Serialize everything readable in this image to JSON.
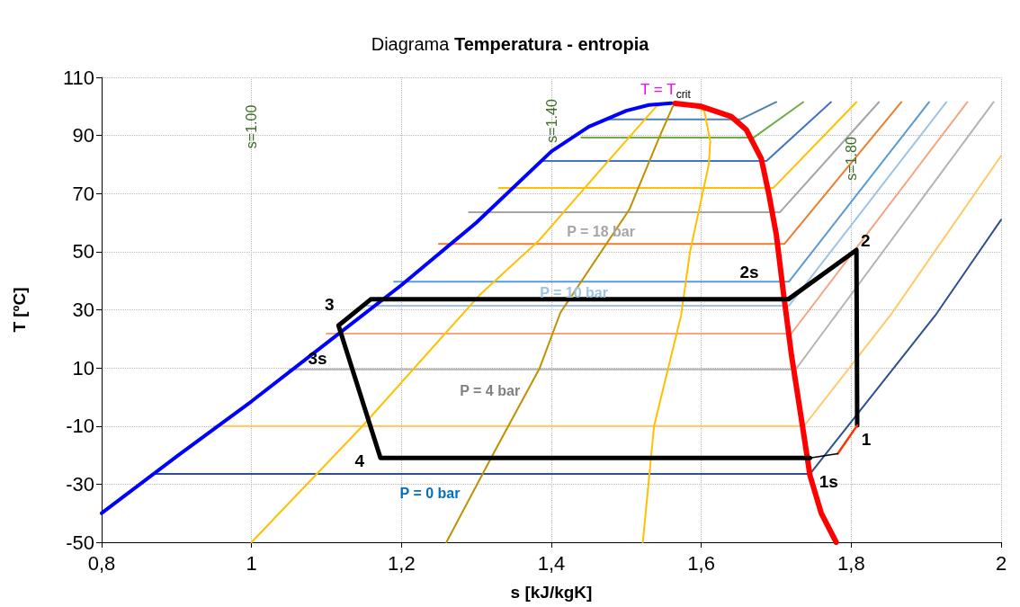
{
  "chart_data": {
    "type": "line",
    "title": "Diagrama Temperatura - entropia",
    "xlabel": "s [kJ/kgK]",
    "ylabel": "T [ºC]",
    "xlim": [
      0.8,
      2
    ],
    "xticks": [
      {
        "value": 0.8,
        "label": "0,8"
      },
      1,
      {
        "value": 1.2,
        "label": "1,2"
      },
      {
        "value": 1.4,
        "label": "1,4"
      },
      {
        "value": 1.6,
        "label": "1,6"
      },
      {
        "value": 1.8,
        "label": "1,8"
      },
      2
    ],
    "ylim": [
      -50,
      110
    ],
    "yticks": [
      -50,
      -30,
      -10,
      10,
      30,
      50,
      70,
      90,
      110
    ],
    "grid": true,
    "marker": "none",
    "line_style": "solid",
    "series": [
      {
        "color": "#0000ff",
        "x": [
          0.8,
          0.9,
          1.0,
          1.1,
          1.2,
          1.3,
          1.4,
          1.45,
          1.5,
          1.53,
          1.56
        ],
        "values": [
          -40,
          -20.5,
          -1.5,
          18.5,
          38.5,
          60,
          84.5,
          93,
          98.5,
          100.5,
          101.1
        ]
      },
      {
        "color": "#ff0000",
        "x": [
          1.565,
          1.6,
          1.64,
          1.66,
          1.68,
          1.69,
          1.7,
          1.71,
          1.72,
          1.735,
          1.745,
          1.76,
          1.78
        ],
        "values": [
          101,
          100,
          96.5,
          92,
          82,
          70,
          56,
          35,
          15,
          -10,
          -27,
          -40,
          -50
        ]
      },
      {
        "color": "#2f4f8f",
        "x": [
          0.87,
          1.745,
          1.912,
          2.0
        ],
        "values": [
          -26.5,
          -26.5,
          28,
          61
        ]
      },
      {
        "color": "#ffc966",
        "x": [
          0.95,
          1.737,
          1.852,
          2.0
        ],
        "values": [
          -10,
          -10,
          28,
          83
        ]
      },
      {
        "color": "#b4b4b4",
        "x": [
          1.05,
          1.726,
          1.99
        ],
        "values": [
          9.5,
          9.5,
          101.5
        ]
      },
      {
        "color": "#f4a582",
        "x": [
          1.1,
          1.72,
          1.955
        ],
        "values": [
          21.8,
          21.8,
          101.5
        ]
      },
      {
        "color": "#9dc3e6",
        "x": [
          1.15,
          1.717,
          1.927
        ],
        "values": [
          31.4,
          31.4,
          101.5
        ]
      },
      {
        "color": "#5b9bd5",
        "x": [
          1.19,
          1.717,
          1.904
        ],
        "values": [
          39.7,
          39.7,
          101.5
        ]
      },
      {
        "color": "#ed7d31",
        "x": [
          1.25,
          1.711,
          1.867
        ],
        "values": [
          52.7,
          52.7,
          101.5
        ]
      },
      {
        "color": "#a5a5a5",
        "x": [
          1.29,
          1.705,
          1.837
        ],
        "values": [
          63.6,
          63.6,
          101.5
        ]
      },
      {
        "color": "#ffc000",
        "x": [
          1.33,
          1.696,
          1.807
        ],
        "values": [
          71.9,
          71.9,
          101.5
        ]
      },
      {
        "color": "#4472c4",
        "x": [
          1.39,
          1.687,
          1.773
        ],
        "values": [
          81.2,
          81.2,
          101.5
        ]
      },
      {
        "color": "#70ad47",
        "x": [
          1.44,
          1.67,
          1.736
        ],
        "values": [
          89.3,
          89.3,
          101.5
        ]
      },
      {
        "color": "#4e80b0",
        "x": [
          1.475,
          1.652,
          1.7
        ],
        "values": [
          95.5,
          95.5,
          101.5
        ]
      },
      {
        "color": "#ffc000",
        "x": [
          1.0,
          1.148,
          1.304,
          1.384,
          1.465,
          1.54,
          1.555
        ],
        "values": [
          -50,
          -10,
          35,
          54,
          78,
          100,
          101
        ]
      },
      {
        "color": "#bf9000",
        "x": [
          1.26,
          1.321,
          1.384,
          1.412,
          1.504,
          1.545,
          1.562
        ],
        "values": [
          -50,
          -20.3,
          9.7,
          29,
          64.5,
          90,
          100
        ]
      },
      {
        "color": "#ffc000",
        "x": [
          1.522,
          1.537,
          1.573,
          1.585,
          1.61,
          1.612,
          1.604,
          1.585
        ],
        "values": [
          -50,
          -10,
          28,
          50,
          80,
          88,
          98.5,
          100.7
        ]
      },
      {
        "color": "#000000",
        "x": [
          1.745,
          1.172,
          1.116,
          1.159,
          1.716,
          1.807,
          1.808
        ],
        "values": [
          -21,
          -21,
          24.6,
          33.6,
          33.6,
          50.6,
          -9.8
        ]
      },
      {
        "color": "#ff3300",
        "x": [
          1.808,
          1.782
        ],
        "values": [
          -9.8,
          -19.5
        ]
      },
      {
        "color": "#000000",
        "x": [
          1.782,
          1.745
        ],
        "values": [
          -19.5,
          -21
        ]
      }
    ],
    "annotations": [
      "s=1.00",
      "s=1.40",
      "s=1.80",
      "T = T$_{crit}$",
      "P = 18 bar",
      "P = 10 bar",
      "P = 4 bar",
      "P = 0 bar",
      "3",
      "3s",
      "4",
      "2s",
      "2",
      "1",
      "1s"
    ]
  }
}
